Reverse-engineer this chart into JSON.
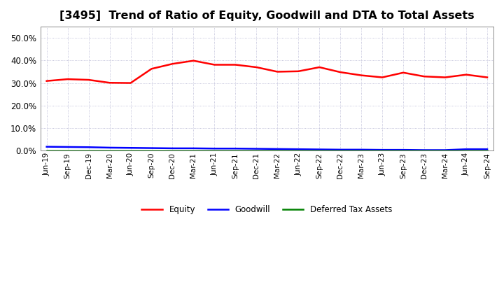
{
  "title": "[3495]  Trend of Ratio of Equity, Goodwill and DTA to Total Assets",
  "title_fontsize": 11.5,
  "x_labels": [
    "Jun-19",
    "Sep-19",
    "Dec-19",
    "Mar-20",
    "Jun-20",
    "Sep-20",
    "Dec-20",
    "Mar-21",
    "Jun-21",
    "Sep-21",
    "Dec-21",
    "Mar-22",
    "Jun-22",
    "Sep-22",
    "Dec-22",
    "Mar-23",
    "Jun-23",
    "Sep-23",
    "Dec-23",
    "Mar-24",
    "Jun-24",
    "Sep-24"
  ],
  "equity": [
    0.309,
    0.317,
    0.314,
    0.301,
    0.3,
    0.363,
    0.385,
    0.399,
    0.381,
    0.381,
    0.37,
    0.35,
    0.352,
    0.37,
    0.348,
    0.334,
    0.325,
    0.346,
    0.329,
    0.325,
    0.337,
    0.325
  ],
  "goodwill": [
    0.017,
    0.016,
    0.015,
    0.013,
    0.012,
    0.011,
    0.01,
    0.01,
    0.009,
    0.009,
    0.008,
    0.007,
    0.006,
    0.005,
    0.004,
    0.004,
    0.003,
    0.003,
    0.002,
    0.002,
    0.006,
    0.006
  ],
  "dta": [
    0.001,
    0.001,
    0.001,
    0.001,
    0.001,
    0.001,
    0.001,
    0.001,
    0.001,
    0.001,
    0.001,
    0.001,
    0.001,
    0.001,
    0.001,
    0.001,
    0.001,
    0.001,
    0.001,
    0.001,
    0.001,
    0.001
  ],
  "equity_color": "#ff0000",
  "goodwill_color": "#0000ff",
  "dta_color": "#008000",
  "bg_color": "#ffffff",
  "plot_bg_color": "#ffffff",
  "grid_color": "#aaaacc",
  "ylim": [
    0.0,
    0.55
  ],
  "yticks": [
    0.0,
    0.1,
    0.2,
    0.3,
    0.4,
    0.5
  ],
  "legend_labels": [
    "Equity",
    "Goodwill",
    "Deferred Tax Assets"
  ],
  "linewidth": 1.8
}
